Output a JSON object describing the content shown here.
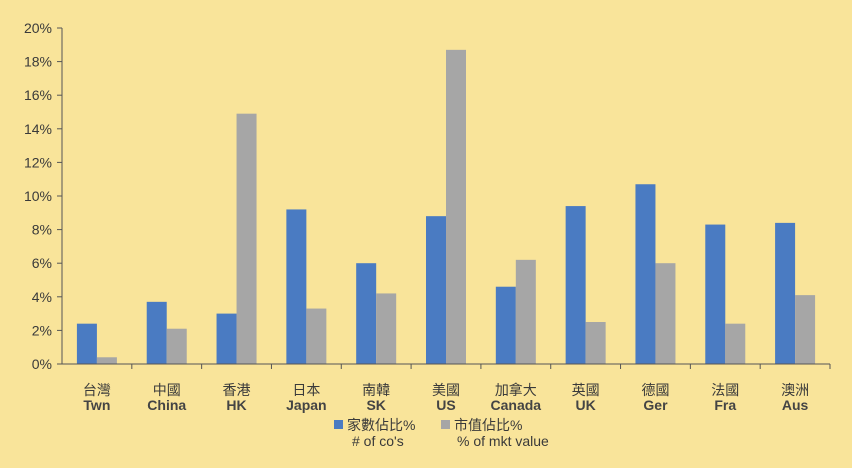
{
  "chart_data": {
    "type": "bar",
    "ylim": [
      0,
      20
    ],
    "yticks": [
      "0%",
      "2%",
      "4%",
      "6%",
      "8%",
      "10%",
      "12%",
      "14%",
      "16%",
      "18%",
      "20%"
    ],
    "categories": [
      {
        "cn": "台灣",
        "en": "Twn"
      },
      {
        "cn": "中國",
        "en": "China"
      },
      {
        "cn": "香港",
        "en": "HK"
      },
      {
        "cn": "日本",
        "en": "Japan"
      },
      {
        "cn": "南韓",
        "en": "SK"
      },
      {
        "cn": "美國",
        "en": "US"
      },
      {
        "cn": "加拿大",
        "en": "Canada"
      },
      {
        "cn": "英國",
        "en": "UK"
      },
      {
        "cn": "德國",
        "en": "Ger"
      },
      {
        "cn": "法國",
        "en": "Fra"
      },
      {
        "cn": "澳洲",
        "en": "Aus"
      }
    ],
    "series": [
      {
        "name": "家數佔比%",
        "name_en": "# of co's",
        "color": "#4a7bc2",
        "values": [
          2.4,
          3.7,
          3.0,
          9.2,
          6.0,
          8.8,
          4.6,
          9.4,
          10.7,
          8.3,
          8.4
        ]
      },
      {
        "name": "市值佔比%",
        "name_en": "% of mkt value",
        "color": "#a6a6a6",
        "values": [
          0.4,
          2.1,
          14.9,
          3.3,
          4.2,
          18.7,
          6.2,
          2.5,
          6.0,
          2.4,
          4.1
        ]
      }
    ],
    "grid": false,
    "legend_position": "bottom-center"
  }
}
